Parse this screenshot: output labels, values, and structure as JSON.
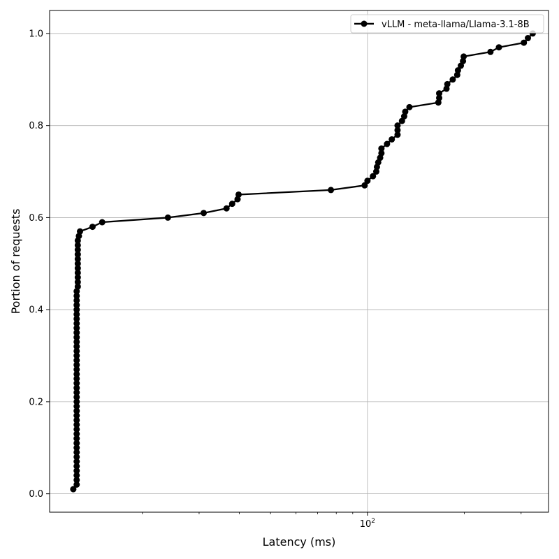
{
  "chart_data": {
    "type": "line",
    "title": "",
    "xlabel": "Latency (ms)",
    "ylabel": "Portion of requests",
    "xscale": "log",
    "xlim": [
      10.3,
      365
    ],
    "ylim": [
      -0.04,
      1.05
    ],
    "x_major_ticks": [
      100
    ],
    "x_tick_labels": [
      "10^2"
    ],
    "y_ticks": [
      0.0,
      0.2,
      0.4,
      0.6,
      0.8,
      1.0
    ],
    "y_tick_labels": [
      "0.0",
      "0.2",
      "0.4",
      "0.6",
      "0.8",
      "1.0"
    ],
    "grid": true,
    "legend_position": "top-right",
    "series": [
      {
        "name": "vLLM - meta-llama/Llama-3.1-8B",
        "color": "#000000",
        "marker": "circle",
        "x": [
          12.2,
          12.5,
          12.5,
          12.5,
          12.5,
          12.5,
          12.5,
          12.5,
          12.5,
          12.5,
          12.5,
          12.5,
          12.5,
          12.5,
          12.5,
          12.5,
          12.5,
          12.5,
          12.5,
          12.5,
          12.5,
          12.5,
          12.5,
          12.5,
          12.5,
          12.5,
          12.5,
          12.5,
          12.5,
          12.5,
          12.5,
          12.5,
          12.5,
          12.5,
          12.5,
          12.5,
          12.5,
          12.5,
          12.5,
          12.5,
          12.5,
          12.5,
          12.5,
          12.5,
          12.6,
          12.6,
          12.6,
          12.6,
          12.6,
          12.6,
          12.6,
          12.6,
          12.6,
          12.6,
          12.6,
          12.7,
          12.8,
          14.0,
          15.0,
          24.0,
          31.0,
          36.5,
          38.0,
          39.5,
          39.8,
          77.0,
          98.0,
          100.0,
          104.0,
          106.5,
          107.0,
          108.0,
          109.5,
          110.5,
          110.5,
          115.0,
          119.0,
          124.0,
          124.0,
          124.0,
          128.0,
          130.0,
          131.0,
          135.0,
          166.0,
          167.0,
          167.0,
          176.0,
          177.0,
          184.0,
          190.0,
          191.0,
          195.0,
          198.0,
          199.0,
          241.0,
          256.0,
          306.0,
          315.0,
          326.0
        ],
        "y": [
          0.01,
          0.02,
          0.03,
          0.04,
          0.05,
          0.06,
          0.07,
          0.08,
          0.09,
          0.1,
          0.11,
          0.12,
          0.13,
          0.14,
          0.15,
          0.16,
          0.17,
          0.18,
          0.19,
          0.2,
          0.21,
          0.22,
          0.23,
          0.24,
          0.25,
          0.26,
          0.27,
          0.28,
          0.29,
          0.3,
          0.31,
          0.32,
          0.33,
          0.34,
          0.35,
          0.36,
          0.37,
          0.38,
          0.39,
          0.4,
          0.41,
          0.42,
          0.43,
          0.44,
          0.45,
          0.46,
          0.47,
          0.48,
          0.49,
          0.5,
          0.51,
          0.52,
          0.53,
          0.54,
          0.55,
          0.56,
          0.57,
          0.58,
          0.59,
          0.6,
          0.61,
          0.62,
          0.63,
          0.64,
          0.65,
          0.66,
          0.67,
          0.68,
          0.69,
          0.7,
          0.71,
          0.72,
          0.73,
          0.74,
          0.75,
          0.76,
          0.77,
          0.78,
          0.79,
          0.8,
          0.81,
          0.82,
          0.83,
          0.84,
          0.85,
          0.86,
          0.87,
          0.88,
          0.89,
          0.9,
          0.91,
          0.92,
          0.93,
          0.94,
          0.95,
          0.96,
          0.97,
          0.98,
          0.99,
          1.0
        ]
      }
    ]
  }
}
